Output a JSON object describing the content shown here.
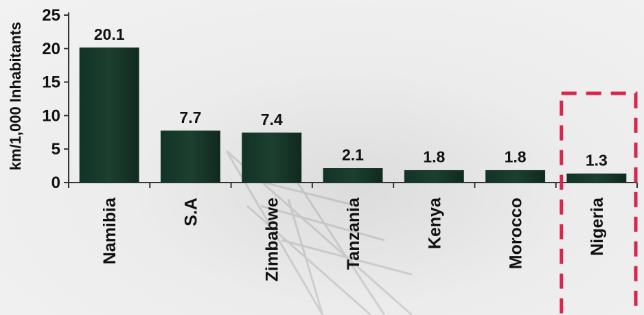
{
  "chart_data": {
    "type": "bar",
    "title": "",
    "xlabel": "",
    "ylabel": "km/1,000 Inhabitants",
    "ylim": [
      0,
      25
    ],
    "yticks": [
      0,
      5,
      10,
      15,
      20,
      25
    ],
    "categories": [
      "Namibia",
      "S.A",
      "Zimbabwe",
      "Tanzania",
      "Kenya",
      "Morocco",
      "Nigeria"
    ],
    "values": [
      20.1,
      7.7,
      7.4,
      2.1,
      1.8,
      1.8,
      1.3
    ],
    "data_labels": [
      "20.1",
      "7.7",
      "7.4",
      "2.1",
      "1.8",
      "1.8",
      "1.3"
    ],
    "bar_color": "#173a28",
    "highlight": {
      "category": "Nigeria",
      "color": "#d9254a",
      "style": "dashed-box"
    },
    "grid": false,
    "legend": "none"
  }
}
